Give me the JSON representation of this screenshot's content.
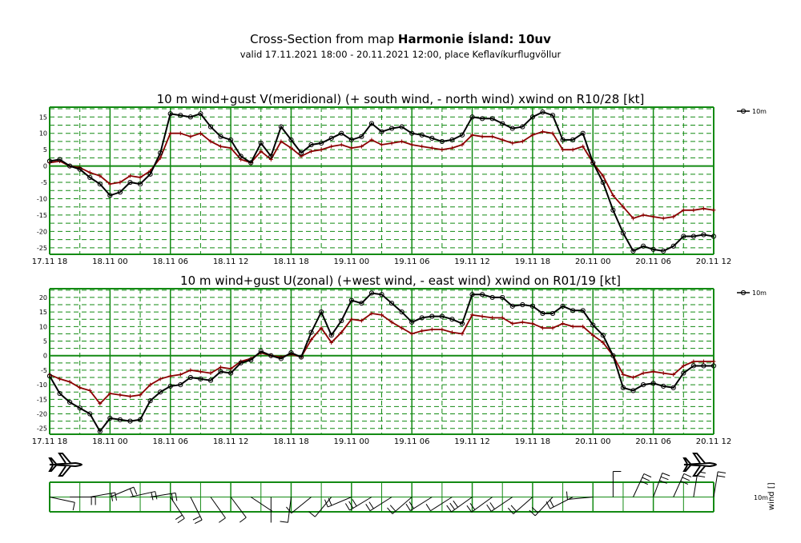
{
  "header": {
    "title_prefix": "Cross-Section from map ",
    "title_bold": "Harmonie Ísland: 10uv",
    "subtitle": "valid 17.11.2021 18:00 - 20.11.2021 12:00, place Keflavíkurflugvöllur"
  },
  "colors": {
    "grid": "#138a13",
    "wind": "#000000",
    "gust": "#8b0000"
  },
  "barb_panel": {
    "legend_level": "10m",
    "legend_var": "wind []",
    "icon": "airplane-icon"
  },
  "chart_data": [
    {
      "type": "line",
      "title": "10 m wind+gust V(meridional) (+ south wind, - north wind) xwind on R10/28 [kt]",
      "x_unit": "hours since 17.11 18",
      "xlim": [
        0,
        66
      ],
      "x_tick_values": [
        0,
        6,
        12,
        18,
        24,
        30,
        36,
        42,
        48,
        54,
        60,
        66
      ],
      "x_tick_labels": [
        "17.11 18",
        "18.11 00",
        "18.11 06",
        "18.11 12",
        "18.11 18",
        "19.11 00",
        "19.11 06",
        "19.11 12",
        "19.11 18",
        "20.11 00",
        "20.11 06",
        "20.11 12"
      ],
      "ylim": [
        -27,
        18
      ],
      "y_ticks": [
        -25,
        -20,
        -15,
        -10,
        -5,
        0,
        5,
        10,
        15
      ],
      "legend": {
        "label": "10m",
        "position": "right-top"
      },
      "series": [
        {
          "name": "10m",
          "color": "#000000",
          "marker": "circle",
          "x": [
            0,
            1,
            2,
            3,
            4,
            5,
            6,
            7,
            8,
            9,
            10,
            11,
            12,
            13,
            14,
            15,
            16,
            17,
            18,
            19,
            20,
            21,
            22,
            23,
            24,
            25,
            26,
            27,
            28,
            29,
            30,
            31,
            32,
            33,
            34,
            35,
            36,
            37,
            38,
            39,
            40,
            41,
            42,
            43,
            44,
            45,
            46,
            47,
            48,
            49,
            50,
            51,
            52,
            53,
            54,
            55,
            56,
            57,
            58,
            59,
            60,
            61,
            62,
            63,
            64,
            65,
            66
          ],
          "y": [
            1.5,
            2,
            0,
            -1,
            -3.5,
            -5.5,
            -9,
            -8,
            -5,
            -5.5,
            -2.5,
            4,
            16,
            15.5,
            15,
            16,
            12,
            9,
            8,
            3,
            1,
            7,
            3,
            12,
            8,
            4,
            6.5,
            7,
            8.5,
            10,
            8,
            9,
            13,
            10.5,
            11.5,
            12,
            10,
            9.5,
            8.5,
            7.5,
            8,
            9.5,
            15,
            14.5,
            14.5,
            13,
            11.5,
            12,
            15,
            16.5,
            15.5,
            8,
            8,
            10,
            1,
            -5,
            -13.5,
            -20.5,
            -26,
            -24.5,
            -25.5,
            -26,
            -24.5,
            -21.5,
            -21.5,
            -21,
            -21.5
          ]
        },
        {
          "name": "",
          "color": "#8b0000",
          "marker": "plus",
          "x": [
            0,
            1,
            2,
            3,
            4,
            5,
            6,
            7,
            8,
            9,
            10,
            11,
            12,
            13,
            14,
            15,
            16,
            17,
            18,
            19,
            20,
            21,
            22,
            23,
            24,
            25,
            26,
            27,
            28,
            29,
            30,
            31,
            32,
            33,
            34,
            35,
            36,
            37,
            38,
            39,
            40,
            41,
            42,
            43,
            44,
            45,
            46,
            47,
            48,
            49,
            50,
            51,
            52,
            53,
            54,
            55,
            56,
            57,
            58,
            59,
            60,
            61,
            62,
            63,
            64,
            65,
            66
          ],
          "y": [
            1,
            1.5,
            0,
            -0.5,
            -2,
            -3,
            -5.5,
            -5,
            -3,
            -3.5,
            -1.5,
            2.5,
            10,
            10,
            9,
            10,
            7.5,
            6,
            5.5,
            2,
            1,
            4.5,
            2,
            7.5,
            5.5,
            3,
            4.5,
            5,
            6,
            6.5,
            5.5,
            6,
            8,
            6.5,
            7,
            7.5,
            6.5,
            6,
            5.5,
            5,
            5.5,
            6.5,
            9.5,
            9,
            9,
            8,
            7,
            7.5,
            9.5,
            10.5,
            10,
            5,
            5,
            6,
            1,
            -3,
            -9,
            -12.5,
            -16,
            -15,
            -15.5,
            -16,
            -15.5,
            -13.5,
            -13.5,
            -13,
            -13.5
          ]
        }
      ]
    },
    {
      "type": "line",
      "title": "10 m wind+gust U(zonal) (+west wind, - east wind) xwind on R01/19 [kt]",
      "x_unit": "hours since 17.11 18",
      "xlim": [
        0,
        66
      ],
      "x_tick_values": [
        0,
        6,
        12,
        18,
        24,
        30,
        36,
        42,
        48,
        54,
        60,
        66
      ],
      "x_tick_labels": [
        "17.11 18",
        "18.11 00",
        "18.11 06",
        "18.11 12",
        "18.11 18",
        "19.11 00",
        "19.11 06",
        "19.11 12",
        "19.11 18",
        "20.11 00",
        "20.11 06",
        "20.11 12"
      ],
      "ylim": [
        -27,
        23
      ],
      "y_ticks": [
        -25,
        -20,
        -15,
        -10,
        -5,
        0,
        5,
        10,
        15,
        20
      ],
      "legend": {
        "label": "10m",
        "position": "right-top"
      },
      "series": [
        {
          "name": "10m",
          "color": "#000000",
          "marker": "circle",
          "x": [
            0,
            1,
            2,
            3,
            4,
            5,
            6,
            7,
            8,
            9,
            10,
            11,
            12,
            13,
            14,
            15,
            16,
            17,
            18,
            19,
            20,
            21,
            22,
            23,
            24,
            25,
            26,
            27,
            28,
            29,
            30,
            31,
            32,
            33,
            34,
            35,
            36,
            37,
            38,
            39,
            40,
            41,
            42,
            43,
            44,
            45,
            46,
            47,
            48,
            49,
            50,
            51,
            52,
            53,
            54,
            55,
            56,
            57,
            58,
            59,
            60,
            61,
            62,
            63,
            64,
            65,
            66
          ],
          "y": [
            -7,
            -13,
            -16,
            -18,
            -20,
            -26,
            -21.5,
            -22,
            -22.5,
            -22,
            -15.5,
            -12.5,
            -10.5,
            -10,
            -7.5,
            -8,
            -8.5,
            -5.5,
            -6,
            -2.5,
            -1.5,
            1.5,
            0,
            -1,
            1,
            -0.5,
            8,
            15,
            7,
            12,
            19,
            18,
            21.5,
            21,
            18,
            15,
            11.5,
            13,
            13.5,
            13.5,
            12.5,
            11,
            21,
            21,
            20,
            20,
            17,
            17.5,
            17,
            14.5,
            14.5,
            17,
            15.5,
            15.5,
            10.5,
            7,
            0,
            -11,
            -12,
            -10,
            -9.5,
            -10.5,
            -11,
            -6,
            -3.5,
            -3.5,
            -3.5
          ]
        },
        {
          "name": "",
          "color": "#8b0000",
          "marker": "plus",
          "x": [
            0,
            1,
            2,
            3,
            4,
            5,
            6,
            7,
            8,
            9,
            10,
            11,
            12,
            13,
            14,
            15,
            16,
            17,
            18,
            19,
            20,
            21,
            22,
            23,
            24,
            25,
            26,
            27,
            28,
            29,
            30,
            31,
            32,
            33,
            34,
            35,
            36,
            37,
            38,
            39,
            40,
            41,
            42,
            43,
            44,
            45,
            46,
            47,
            48,
            49,
            50,
            51,
            52,
            53,
            54,
            55,
            56,
            57,
            58,
            59,
            60,
            61,
            62,
            63,
            64,
            65,
            66
          ],
          "y": [
            -6.5,
            -8,
            -9,
            -11,
            -12,
            -16.5,
            -13,
            -13.5,
            -14,
            -13.5,
            -10,
            -8,
            -7,
            -6.5,
            -5,
            -5.5,
            -6,
            -4,
            -4.5,
            -2,
            -1,
            1,
            0,
            -0.5,
            0.5,
            -0.5,
            5.5,
            9.5,
            4.5,
            8,
            12.5,
            12,
            14.5,
            14,
            11.5,
            9.5,
            7.5,
            8.5,
            9,
            9,
            8,
            7.5,
            14,
            13.5,
            13,
            13,
            11,
            11.5,
            11,
            9.5,
            9.5,
            11,
            10,
            10,
            7,
            4.5,
            0,
            -6.5,
            -7.5,
            -6,
            -5.5,
            -6,
            -6.5,
            -3.5,
            -2,
            -2,
            -2
          ]
        }
      ]
    }
  ]
}
